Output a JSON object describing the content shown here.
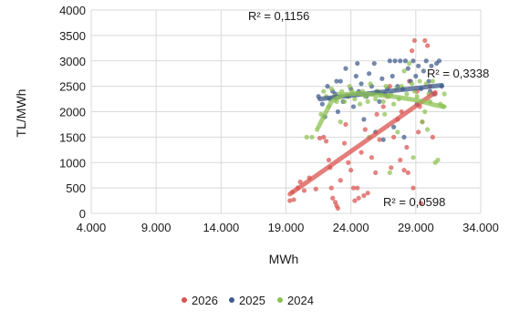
{
  "chart_data": {
    "type": "scatter",
    "xlabel": "MWh",
    "ylabel": "TL/MWh",
    "xlim": [
      4000,
      34000
    ],
    "ylim": [
      0,
      4000
    ],
    "x_ticks": [
      4000,
      9000,
      14000,
      19000,
      24000,
      29000,
      34000
    ],
    "x_tick_labels": [
      "4.000",
      "9.000",
      "14.000",
      "19.000",
      "24.000",
      "29.000",
      "34.000"
    ],
    "y_ticks": [
      0,
      500,
      1000,
      1500,
      2000,
      2500,
      3000,
      3500,
      4000
    ],
    "y_tick_labels": [
      "0",
      "500",
      "1000",
      "1500",
      "2000",
      "2500",
      "3000",
      "3500",
      "4000"
    ],
    "grid": "vertical and horizontal major gridlines",
    "legend_position": "bottom",
    "annotations": [
      "R² = 0,1156",
      "R² = 0,3338",
      "R² = 0,0598"
    ],
    "series": [
      {
        "name": "2026",
        "color": "#d9534f",
        "trendline": {
          "type": "linear",
          "x": [
            19300,
            30500
          ],
          "y": [
            380,
            2380
          ]
        },
        "points": [
          [
            19300,
            250
          ],
          [
            19500,
            420
          ],
          [
            19600,
            270
          ],
          [
            19900,
            500
          ],
          [
            20400,
            450
          ],
          [
            20800,
            700
          ],
          [
            21300,
            480
          ],
          [
            21600,
            1480
          ],
          [
            21900,
            1500
          ],
          [
            22100,
            1420
          ],
          [
            22300,
            1050
          ],
          [
            22400,
            900
          ],
          [
            22500,
            500
          ],
          [
            22600,
            300
          ],
          [
            22800,
            220
          ],
          [
            22900,
            150
          ],
          [
            23000,
            100
          ],
          [
            23200,
            650
          ],
          [
            23500,
            1380
          ],
          [
            23800,
            1000
          ],
          [
            24000,
            850
          ],
          [
            24200,
            500
          ],
          [
            24300,
            250
          ],
          [
            24500,
            500
          ],
          [
            24800,
            1200
          ],
          [
            25100,
            1650
          ],
          [
            25300,
            400
          ],
          [
            25600,
            1100
          ],
          [
            25900,
            800
          ],
          [
            26200,
            1450
          ],
          [
            26500,
            2100
          ],
          [
            26800,
            2300
          ],
          [
            27100,
            900
          ],
          [
            27300,
            1500
          ],
          [
            27600,
            1850
          ],
          [
            27900,
            2000
          ],
          [
            28100,
            850
          ],
          [
            28300,
            1300
          ],
          [
            28500,
            2600
          ],
          [
            28700,
            3200
          ],
          [
            28900,
            3400
          ],
          [
            29100,
            2400
          ],
          [
            29300,
            2100
          ],
          [
            29500,
            1800
          ],
          [
            29700,
            3400
          ],
          [
            29900,
            3300
          ],
          [
            30100,
            2500
          ],
          [
            30300,
            1500
          ],
          [
            28400,
            800
          ],
          [
            27800,
            1050
          ],
          [
            29400,
            200
          ],
          [
            28800,
            500
          ],
          [
            25000,
            350
          ],
          [
            23600,
            1750
          ],
          [
            20100,
            620
          ],
          [
            26000,
            1950
          ],
          [
            30500,
            2350
          ],
          [
            29200,
            1600
          ],
          [
            27000,
            2500
          ],
          [
            24600,
            300
          ]
        ]
      },
      {
        "name": "2025",
        "color": "#3d5a8a",
        "trendline": {
          "type": "linear",
          "x": [
            21600,
            31000
          ],
          "y": [
            2250,
            2520
          ]
        },
        "points": [
          [
            21500,
            2300
          ],
          [
            21800,
            2150
          ],
          [
            22000,
            1900
          ],
          [
            22200,
            2500
          ],
          [
            22400,
            2250
          ],
          [
            22600,
            2400
          ],
          [
            22800,
            2350
          ],
          [
            23000,
            2000
          ],
          [
            23200,
            2600
          ],
          [
            23400,
            2200
          ],
          [
            23600,
            2850
          ],
          [
            23800,
            2300
          ],
          [
            24000,
            2450
          ],
          [
            24200,
            2100
          ],
          [
            24400,
            2700
          ],
          [
            24600,
            2400
          ],
          [
            24800,
            2550
          ],
          [
            25000,
            1850
          ],
          [
            25200,
            2300
          ],
          [
            25400,
            2750
          ],
          [
            25600,
            2500
          ],
          [
            25800,
            2950
          ],
          [
            26000,
            2400
          ],
          [
            26200,
            2200
          ],
          [
            26400,
            2650
          ],
          [
            26600,
            2350
          ],
          [
            26800,
            2450
          ],
          [
            27000,
            3000
          ],
          [
            27200,
            2700
          ],
          [
            27400,
            3000
          ],
          [
            27600,
            2500
          ],
          [
            27800,
            3000
          ],
          [
            28000,
            2450
          ],
          [
            28200,
            3000
          ],
          [
            28400,
            2850
          ],
          [
            28600,
            2600
          ],
          [
            28800,
            3000
          ],
          [
            29000,
            2700
          ],
          [
            29200,
            2900
          ],
          [
            29400,
            2450
          ],
          [
            29600,
            2800
          ],
          [
            29800,
            3000
          ],
          [
            30000,
            2600
          ],
          [
            30200,
            2900
          ],
          [
            30400,
            2350
          ],
          [
            30600,
            2950
          ],
          [
            30800,
            3000
          ],
          [
            31000,
            2500
          ],
          [
            25900,
            1600
          ],
          [
            26500,
            1450
          ],
          [
            27300,
            1700
          ],
          [
            28100,
            1500
          ],
          [
            24500,
            2950
          ],
          [
            22900,
            2600
          ],
          [
            29100,
            2150
          ],
          [
            30100,
            2400
          ]
        ]
      },
      {
        "name": "2024",
        "color": "#8cc152",
        "trendline": {
          "type": "polynomial",
          "x": [
            21500,
            22500,
            23500,
            24500,
            25500,
            26500,
            27500,
            28500,
            29500,
            30500,
            31200
          ],
          "y": [
            1700,
            2200,
            2340,
            2360,
            2340,
            2320,
            2290,
            2250,
            2200,
            2130,
            2100
          ]
        },
        "points": [
          [
            20600,
            1500
          ],
          [
            21000,
            1500
          ],
          [
            21400,
            1650
          ],
          [
            21700,
            1950
          ],
          [
            21900,
            2400
          ],
          [
            22100,
            2300
          ],
          [
            22300,
            2100
          ],
          [
            22500,
            2450
          ],
          [
            22700,
            2300
          ],
          [
            22900,
            2200
          ],
          [
            23100,
            2350
          ],
          [
            23300,
            2400
          ],
          [
            23500,
            2200
          ],
          [
            23700,
            2300
          ],
          [
            23900,
            2500
          ],
          [
            24100,
            2400
          ],
          [
            24300,
            2250
          ],
          [
            24500,
            2350
          ],
          [
            24700,
            2150
          ],
          [
            24900,
            2400
          ],
          [
            25100,
            2300
          ],
          [
            25300,
            2200
          ],
          [
            25500,
            2550
          ],
          [
            25700,
            2350
          ],
          [
            25900,
            2250
          ],
          [
            26100,
            2400
          ],
          [
            26300,
            2350
          ],
          [
            26500,
            2200
          ],
          [
            26700,
            2500
          ],
          [
            26900,
            2300
          ],
          [
            27100,
            2350
          ],
          [
            27300,
            2150
          ],
          [
            27500,
            2450
          ],
          [
            27700,
            2250
          ],
          [
            27900,
            2500
          ],
          [
            28100,
            2800
          ],
          [
            28300,
            2350
          ],
          [
            28500,
            2950
          ],
          [
            28700,
            2550
          ],
          [
            28900,
            2400
          ],
          [
            29100,
            2300
          ],
          [
            29300,
            2600
          ],
          [
            29500,
            1800
          ],
          [
            29700,
            2000
          ],
          [
            29900,
            1650
          ],
          [
            30100,
            2200
          ],
          [
            30300,
            2600
          ],
          [
            30500,
            1000
          ],
          [
            30700,
            1050
          ],
          [
            30900,
            2150
          ],
          [
            31100,
            2100
          ],
          [
            31200,
            2350
          ],
          [
            26600,
            1950
          ],
          [
            27600,
            1600
          ],
          [
            28800,
            1100
          ],
          [
            27000,
            800
          ],
          [
            25400,
            1500
          ],
          [
            23200,
            1800
          ],
          [
            29800,
            2550
          ],
          [
            30000,
            2350
          ]
        ]
      }
    ]
  }
}
